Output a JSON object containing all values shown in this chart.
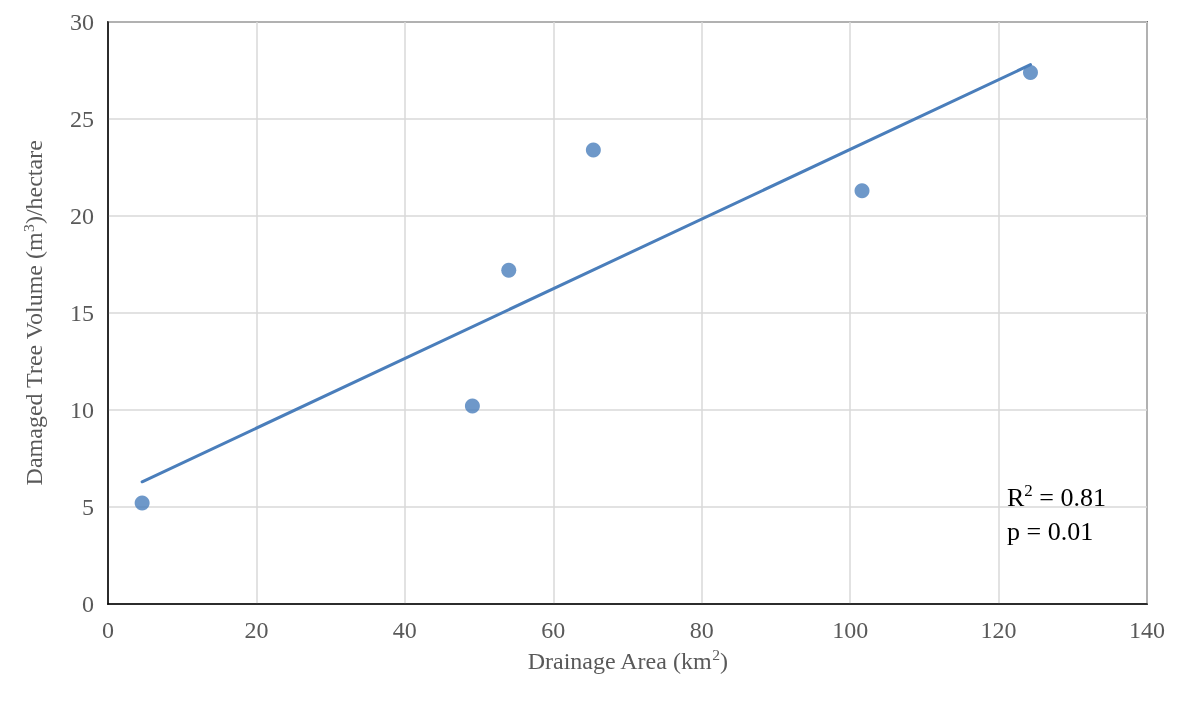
{
  "chart_data": {
    "type": "scatter",
    "xlabel": "Drainage Area (km$^{2}$)",
    "ylabel": "Damaged Tree Volume (m$^{3}$)/hectare",
    "series": [
      {
        "type": "scatter",
        "color": "#4a7ebb",
        "x": [
          4.6,
          49.1,
          54.0,
          65.4,
          101.6,
          124.3
        ],
        "values": [
          5.2,
          10.2,
          17.2,
          23.4,
          21.3,
          27.4
        ],
        "marker": "circle"
      },
      {
        "type": "line",
        "color": "#4a7ebb",
        "x": [
          4.6,
          124.3
        ],
        "values": [
          6.3,
          27.8
        ],
        "marker": "none",
        "line_style": "solid"
      }
    ],
    "xlim": [
      0,
      140
    ],
    "xticks": [
      0,
      20,
      40,
      60,
      80,
      100,
      120,
      140
    ],
    "ylim": [
      0,
      30
    ],
    "yticks": [
      0,
      5,
      10,
      15,
      20,
      25,
      30
    ],
    "grid": true,
    "annotations": [
      "R$^{2}$ = 0.81",
      "p = 0.01"
    ]
  }
}
